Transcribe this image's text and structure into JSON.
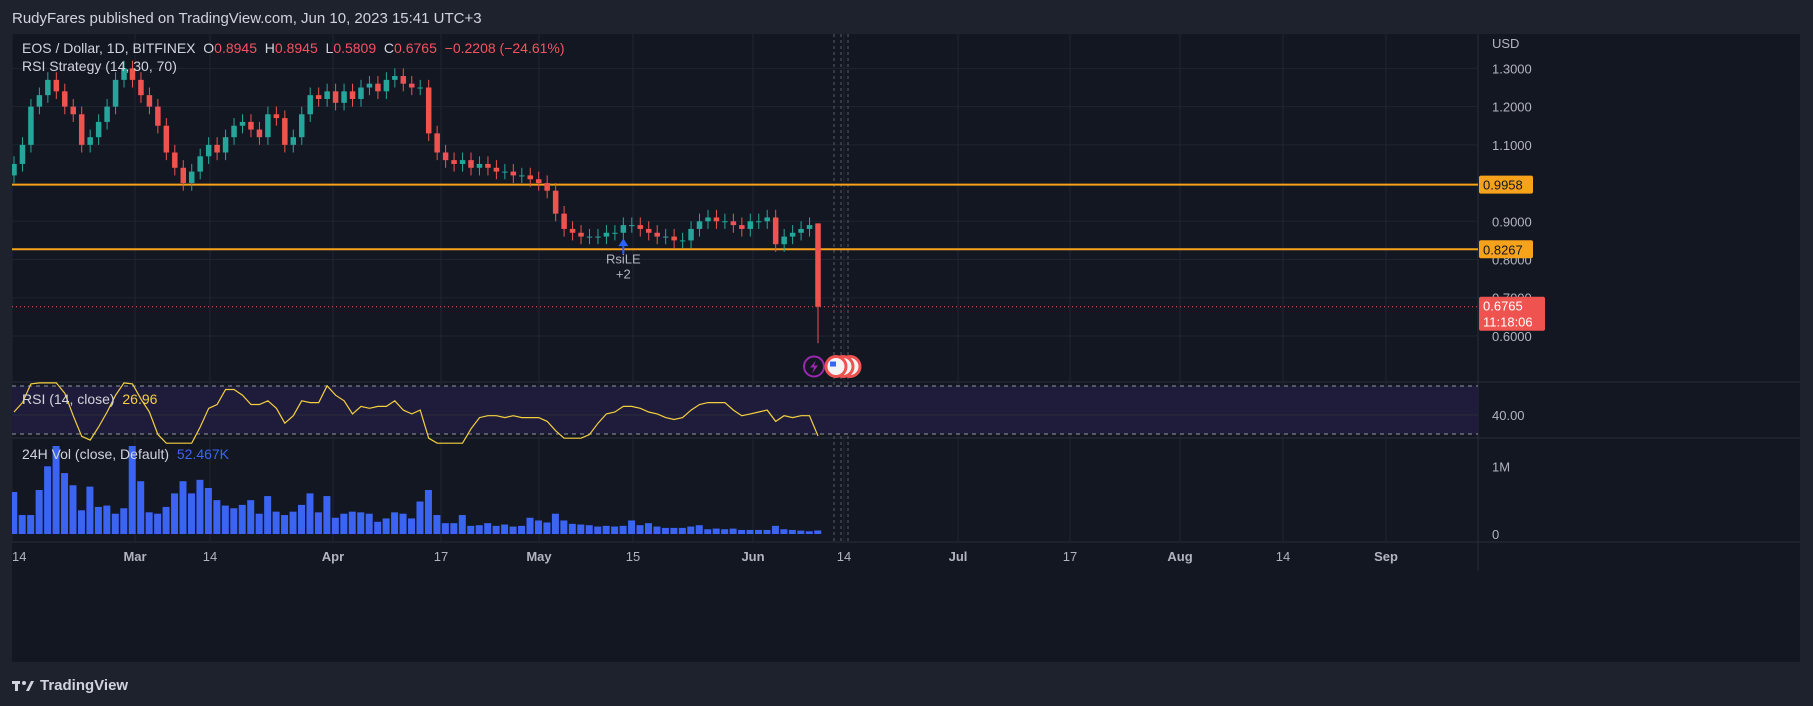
{
  "header": {
    "published": "RudyFares published on TradingView.com, Jun 10, 2023 15:41 UTC+3"
  },
  "legend": {
    "symbol": "EOS / Dollar, 1D, BITFINEX",
    "o_label": "O",
    "o": "0.8945",
    "h_label": "H",
    "h": "0.8945",
    "l_label": "L",
    "l": "0.5809",
    "c_label": "C",
    "c": "0.6765",
    "change": "−0.2208 (−24.61%)",
    "strategy": "RSI Strategy (14, 30, 70)"
  },
  "rsi_legend": {
    "label": "RSI (14, close)",
    "value": "26.96"
  },
  "vol_legend": {
    "label": "24H Vol (close, Default)",
    "value": "52.467K"
  },
  "signal": {
    "name": "RsiLE",
    "qty": "+2"
  },
  "footer": {
    "brand": "TradingView"
  },
  "colors": {
    "up": "#26a69a",
    "down": "#ef5350",
    "level": "#f7a21b",
    "rsi": "#f4d03f",
    "vol": "#3b64f3",
    "bg": "#131722"
  },
  "chart_data": {
    "type": "candlestick",
    "currency": "USD",
    "price_ticks": [
      "1.3000",
      "1.2000",
      "1.1000",
      "0.9000",
      "0.8000",
      "0.7000",
      "0.6000"
    ],
    "price_ylim": [
      0.49,
      1.39
    ],
    "levels": [
      {
        "price": 0.9958,
        "label": "0.9958"
      },
      {
        "price": 0.8267,
        "label": "0.8267"
      }
    ],
    "last_price": {
      "price": 0.6765,
      "label": "0.6765",
      "countdown": "11:18:06"
    },
    "x_ticks": [
      "14",
      "Mar",
      "14",
      "Apr",
      "17",
      "May",
      "15",
      "Jun",
      "14",
      "Jul",
      "17",
      "Aug",
      "14",
      "Sep"
    ],
    "close": [
      1.05,
      1.1,
      1.2,
      1.23,
      1.27,
      1.24,
      1.2,
      1.18,
      1.1,
      1.12,
      1.16,
      1.2,
      1.27,
      1.3,
      1.27,
      1.23,
      1.2,
      1.15,
      1.08,
      1.04,
      1.0,
      1.03,
      1.07,
      1.1,
      1.08,
      1.12,
      1.15,
      1.16,
      1.14,
      1.12,
      1.18,
      1.17,
      1.1,
      1.12,
      1.18,
      1.23,
      1.22,
      1.24,
      1.21,
      1.24,
      1.22,
      1.25,
      1.26,
      1.24,
      1.27,
      1.28,
      1.26,
      1.25,
      1.25,
      1.13,
      1.08,
      1.06,
      1.05,
      1.06,
      1.04,
      1.05,
      1.04,
      1.03,
      1.03,
      1.02,
      1.02,
      1.01,
      1.0,
      0.98,
      0.92,
      0.88,
      0.87,
      0.86,
      0.86,
      0.86,
      0.87,
      0.87,
      0.89,
      0.89,
      0.88,
      0.87,
      0.86,
      0.86,
      0.85,
      0.85,
      0.88,
      0.9,
      0.91,
      0.9,
      0.9,
      0.89,
      0.88,
      0.9,
      0.9,
      0.91,
      0.84,
      0.86,
      0.87,
      0.88,
      0.89,
      0.6765
    ],
    "rsi_ticks": [
      "40.00"
    ],
    "rsi_bands": [
      70,
      30
    ],
    "rsi_last": 26.96,
    "vol_ticks": [
      "1M",
      "0"
    ],
    "vol_max": 1300000,
    "volume": [
      620000,
      280000,
      280000,
      650000,
      1000000,
      1300000,
      900000,
      720000,
      350000,
      700000,
      400000,
      420000,
      300000,
      380000,
      1300000,
      780000,
      320000,
      300000,
      400000,
      600000,
      780000,
      600000,
      800000,
      680000,
      500000,
      420000,
      380000,
      430000,
      500000,
      300000,
      560000,
      330000,
      280000,
      330000,
      430000,
      600000,
      320000,
      560000,
      240000,
      300000,
      330000,
      320000,
      300000,
      180000,
      230000,
      320000,
      300000,
      230000,
      480000,
      650000,
      280000,
      160000,
      160000,
      280000,
      120000,
      130000,
      160000,
      120000,
      140000,
      110000,
      120000,
      240000,
      200000,
      170000,
      300000,
      200000,
      150000,
      140000,
      130000,
      110000,
      120000,
      110000,
      120000,
      200000,
      130000,
      160000,
      110000,
      90000,
      90000,
      90000,
      110000,
      130000,
      70000,
      80000,
      70000,
      80000,
      60000,
      60000,
      60000,
      60000,
      120000,
      70000,
      60000,
      50000,
      40000,
      52467
    ]
  }
}
